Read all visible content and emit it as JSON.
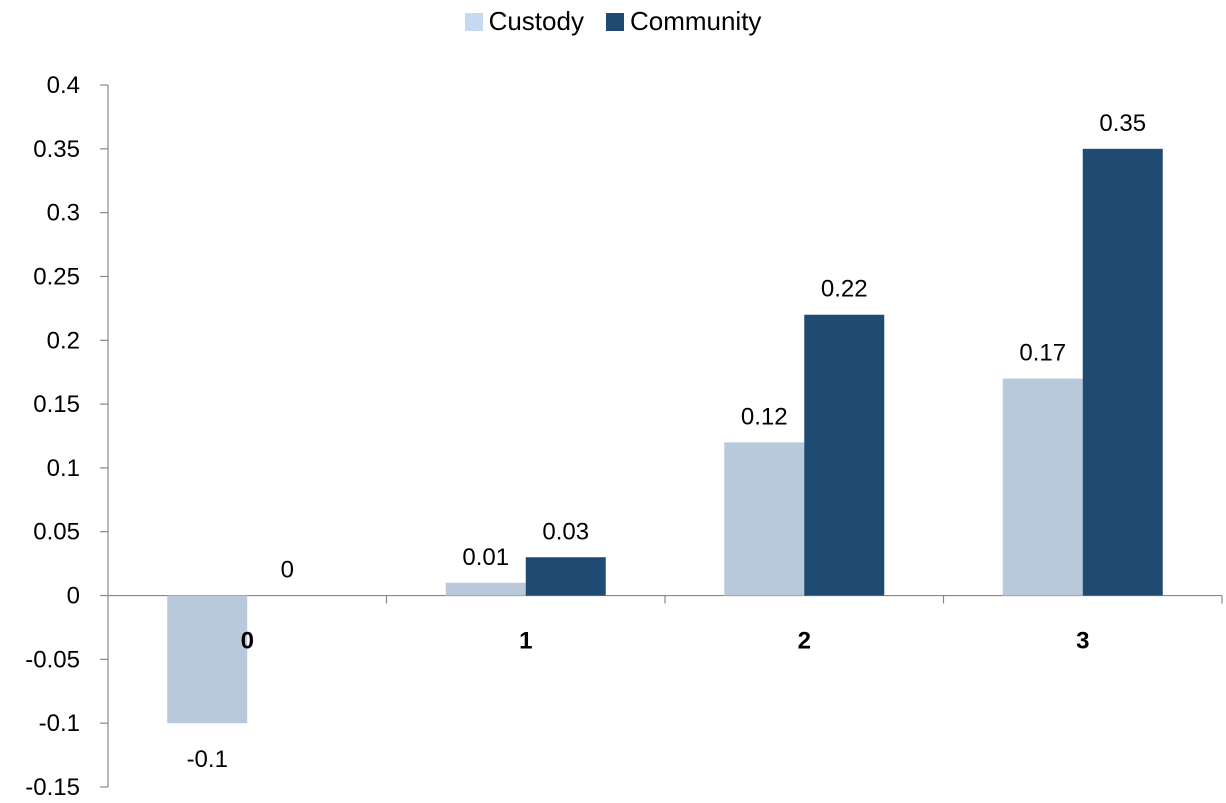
{
  "chart_data": {
    "type": "bar",
    "categories": [
      "0",
      "1",
      "2",
      "3"
    ],
    "series": [
      {
        "name": "Custody",
        "values": [
          -0.1,
          0.01,
          0.12,
          0.17
        ],
        "color": "#b7c9db",
        "legend_color": "#c5d9f1"
      },
      {
        "name": "Community",
        "values": [
          0,
          0.03,
          0.22,
          0.35
        ],
        "color": "#1f4a72",
        "legend_color": "#1f4a72"
      }
    ],
    "title": "",
    "xlabel": "",
    "ylabel": "",
    "ylim": [
      -0.15,
      0.4
    ],
    "yticks": [
      "-0.15",
      "-0.1",
      "-0.05",
      "0",
      "0.05",
      "0.1",
      "0.15",
      "0.2",
      "0.25",
      "0.3",
      "0.35",
      "0.4"
    ],
    "data_labels": [
      [
        "-0.1",
        "0.01",
        "0.12",
        "0.17"
      ],
      [
        "0",
        "0.03",
        "0.22",
        "0.35"
      ]
    ],
    "grid": false,
    "legend_position": "top"
  }
}
